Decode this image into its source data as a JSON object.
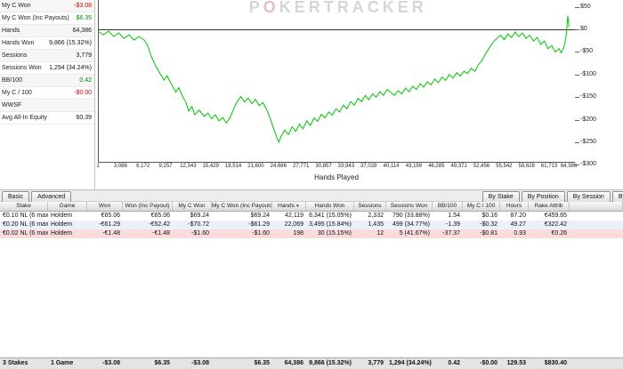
{
  "stats_panel": {
    "rows": [
      {
        "label": "My C Won",
        "value": "-$3.08",
        "color": "neg"
      },
      {
        "label": "My C Won (Inc Payouts)",
        "value": "$6.35",
        "color": "pos"
      },
      {
        "label": "Hands",
        "value": "64,386",
        "color": ""
      },
      {
        "label": "Hands Won",
        "value": "9,866 (15.32%)",
        "color": ""
      },
      {
        "label": "Sessions",
        "value": "3,779",
        "color": ""
      },
      {
        "label": "Sessions Won",
        "value": "1,294 (34.24%)",
        "color": ""
      },
      {
        "label": "BB/100",
        "value": "0.42",
        "color": "pos"
      },
      {
        "label": "My C / 100",
        "value": "-$0.00",
        "color": "neg"
      },
      {
        "label": "WWSF",
        "value": "",
        "color": ""
      },
      {
        "label": "Avg All-In Equity",
        "value": "60.39",
        "color": ""
      }
    ]
  },
  "chart": {
    "watermark": "POKERTRACKER",
    "xlabel": "Hands Played",
    "y_ticks": [
      {
        "label": "$50",
        "value": 50
      },
      {
        "label": "$0",
        "value": 0
      },
      {
        "label": "-$50",
        "value": -50
      },
      {
        "label": "-$100",
        "value": -100
      },
      {
        "label": "-$150",
        "value": -150
      },
      {
        "label": "-$200",
        "value": -200
      },
      {
        "label": "-$250",
        "value": -250
      },
      {
        "label": "-$300",
        "value": -300
      }
    ],
    "x_ticks": [
      {
        "label": "1",
        "value": 1
      },
      {
        "label": "3,086",
        "value": 3086
      },
      {
        "label": "6,172",
        "value": 6172
      },
      {
        "label": "9,257",
        "value": 9257
      },
      {
        "label": "12,343",
        "value": 12343
      },
      {
        "label": "15,429",
        "value": 15429
      },
      {
        "label": "18,514",
        "value": 18514
      },
      {
        "label": "21,600",
        "value": 21600
      },
      {
        "label": "24,686",
        "value": 24686
      },
      {
        "label": "27,771",
        "value": 27771
      },
      {
        "label": "30,857",
        "value": 30857
      },
      {
        "label": "33,943",
        "value": 33943
      },
      {
        "label": "37,028",
        "value": 37028
      },
      {
        "label": "40,114",
        "value": 40114
      },
      {
        "label": "43,199",
        "value": 43199
      },
      {
        "label": "46,285",
        "value": 46285
      },
      {
        "label": "49,371",
        "value": 49371
      },
      {
        "label": "52,456",
        "value": 52456
      },
      {
        "label": "55,542",
        "value": 55542
      },
      {
        "label": "58,628",
        "value": 58628
      },
      {
        "label": "61,713",
        "value": 61713
      },
      {
        "label": "64,386",
        "value": 64386
      }
    ]
  },
  "chart_data": {
    "type": "line",
    "title": "",
    "xlabel": "Hands Played",
    "ylabel": "",
    "xlim": [
      1,
      64386
    ],
    "ylim": [
      -310,
      55
    ],
    "grid": false,
    "line_color": "#00c400",
    "series": [
      {
        "name": "My C Won",
        "points": [
          [
            1,
            -5
          ],
          [
            700,
            -12
          ],
          [
            1400,
            -4
          ],
          [
            2100,
            -16
          ],
          [
            2800,
            -8
          ],
          [
            3500,
            -20
          ],
          [
            4200,
            -12
          ],
          [
            4900,
            -24
          ],
          [
            5500,
            -16
          ],
          [
            6200,
            -22
          ],
          [
            6700,
            -34
          ],
          [
            7200,
            -58
          ],
          [
            7800,
            -80
          ],
          [
            8400,
            -97
          ],
          [
            9000,
            -112
          ],
          [
            9400,
            -103
          ],
          [
            10000,
            -122
          ],
          [
            10600,
            -139
          ],
          [
            11000,
            -129
          ],
          [
            11600,
            -151
          ],
          [
            12000,
            -162
          ],
          [
            12343,
            -181
          ],
          [
            12800,
            -171
          ],
          [
            13200,
            -189
          ],
          [
            13800,
            -179
          ],
          [
            14500,
            -193
          ],
          [
            15000,
            -185
          ],
          [
            15500,
            -198
          ],
          [
            16000,
            -189
          ],
          [
            16500,
            -203
          ],
          [
            17000,
            -195
          ],
          [
            17500,
            -207
          ],
          [
            18000,
            -196
          ],
          [
            18500,
            -176
          ],
          [
            19000,
            -159
          ],
          [
            19500,
            -149
          ],
          [
            20000,
            -161
          ],
          [
            20500,
            -152
          ],
          [
            21000,
            -165
          ],
          [
            21500,
            -155
          ],
          [
            22000,
            -169
          ],
          [
            22500,
            -162
          ],
          [
            23000,
            -177
          ],
          [
            23500,
            -197
          ],
          [
            24000,
            -221
          ],
          [
            24350,
            -237
          ],
          [
            24686,
            -250
          ],
          [
            25000,
            -236
          ],
          [
            25500,
            -223
          ],
          [
            26000,
            -233
          ],
          [
            26500,
            -216
          ],
          [
            27000,
            -226
          ],
          [
            27500,
            -210
          ],
          [
            28000,
            -220
          ],
          [
            28500,
            -203
          ],
          [
            29000,
            -213
          ],
          [
            29500,
            -196
          ],
          [
            30000,
            -204
          ],
          [
            30500,
            -188
          ],
          [
            31000,
            -196
          ],
          [
            31500,
            -183
          ],
          [
            32000,
            -190
          ],
          [
            32500,
            -176
          ],
          [
            33000,
            -183
          ],
          [
            33500,
            -168
          ],
          [
            34000,
            -176
          ],
          [
            34500,
            -160
          ],
          [
            35000,
            -168
          ],
          [
            35500,
            -153
          ],
          [
            36000,
            -160
          ],
          [
            36500,
            -146
          ],
          [
            37000,
            -156
          ],
          [
            37500,
            -143
          ],
          [
            38000,
            -150
          ],
          [
            38500,
            -138
          ],
          [
            39000,
            -146
          ],
          [
            39500,
            -133
          ],
          [
            40000,
            -140
          ],
          [
            40500,
            -146
          ],
          [
            41000,
            -136
          ],
          [
            41500,
            -143
          ],
          [
            42000,
            -130
          ],
          [
            42500,
            -138
          ],
          [
            43000,
            -126
          ],
          [
            43500,
            -133
          ],
          [
            44000,
            -120
          ],
          [
            44500,
            -128
          ],
          [
            45000,
            -116
          ],
          [
            45500,
            -123
          ],
          [
            46000,
            -110
          ],
          [
            46500,
            -118
          ],
          [
            47000,
            -106
          ],
          [
            47500,
            -113
          ],
          [
            48000,
            -100
          ],
          [
            48500,
            -108
          ],
          [
            49000,
            -96
          ],
          [
            49500,
            -103
          ],
          [
            50000,
            -93
          ],
          [
            50500,
            -98
          ],
          [
            51000,
            -86
          ],
          [
            51500,
            -93
          ],
          [
            52000,
            -78
          ],
          [
            52500,
            -68
          ],
          [
            53000,
            -53
          ],
          [
            53500,
            -40
          ],
          [
            54000,
            -28
          ],
          [
            54500,
            -20
          ],
          [
            55000,
            -13
          ],
          [
            55500,
            -23
          ],
          [
            56000,
            -10
          ],
          [
            56500,
            -18
          ],
          [
            57000,
            -6
          ],
          [
            57500,
            -16
          ],
          [
            58000,
            -8
          ],
          [
            58500,
            -20
          ],
          [
            59000,
            -13
          ],
          [
            59500,
            -26
          ],
          [
            60000,
            -18
          ],
          [
            60500,
            -33
          ],
          [
            61000,
            -26
          ],
          [
            61500,
            -43
          ],
          [
            62000,
            -36
          ],
          [
            62500,
            -50
          ],
          [
            63000,
            -43
          ],
          [
            63300,
            -52
          ],
          [
            63700,
            -38
          ],
          [
            64000,
            -12
          ],
          [
            64200,
            30
          ],
          [
            64386,
            6
          ]
        ]
      }
    ]
  },
  "toolbar": {
    "left_buttons": [
      "Basic",
      "Advanced"
    ],
    "right_buttons": [
      "By Stake",
      "By Position",
      "By Session",
      "By Site"
    ]
  },
  "table": {
    "columns": [
      {
        "label": "Stake"
      },
      {
        "label": "Game"
      },
      {
        "label": "Won"
      },
      {
        "label": "Won (Inc Payout)"
      },
      {
        "label": "My C Won"
      },
      {
        "label": "My C Won (Inc Payouts)"
      },
      {
        "label": "Hands",
        "sort": "desc"
      },
      {
        "label": "Hands Won"
      },
      {
        "label": "Sessions"
      },
      {
        "label": "Sessions Won"
      },
      {
        "label": "BB/100"
      },
      {
        "label": "My C / 100"
      },
      {
        "label": "Hours"
      },
      {
        "label": "Rake Attrib"
      }
    ],
    "rows": [
      {
        "bg": "#ffffff",
        "cells": [
          "€0.10 NL (6 max)",
          "Holdem",
          "€65.06",
          "€65.06",
          "$69.24",
          "$69.24",
          "42,119",
          "6,341 (15.05%)",
          "2,332",
          "790 (33.88%)",
          "1.54",
          "$0.16",
          "87.20",
          "€459.65"
        ],
        "colors": [
          "",
          "",
          "pos",
          "pos",
          "pos",
          "pos",
          "",
          "",
          "",
          "",
          "pos",
          "pos",
          "",
          ""
        ]
      },
      {
        "bg": "#eaf1fb",
        "cells": [
          "€0.20 NL (6 max)",
          "Holdem",
          "-€61.29",
          "-€52.42",
          "-$70.72",
          "-$61.29",
          "22,069",
          "3,495 (15.84%)",
          "1,435",
          "499 (34.77%)",
          "-1.39",
          "-$0.32",
          "49.27",
          "€322.42"
        ],
        "colors": [
          "",
          "",
          "neg",
          "neg",
          "neg",
          "neg",
          "",
          "",
          "",
          "",
          "neg",
          "neg",
          "",
          ""
        ]
      },
      {
        "bg": "#fadcdc",
        "cells": [
          "€0.02 NL (6 max)",
          "Holdem",
          "-€1.48",
          "-€1.48",
          "-$1.60",
          "-$1.60",
          "198",
          "30 (15.15%)",
          "12",
          "5 (41.67%)",
          "-37.37",
          "-$0.81",
          "0.93",
          "€0.26"
        ],
        "colors": [
          "",
          "",
          "neg",
          "neg",
          "neg",
          "neg",
          "",
          "",
          "",
          "",
          "neg",
          "neg",
          "",
          ""
        ]
      }
    ],
    "totals": {
      "cells": [
        "3 Stakes",
        "1 Game",
        "-$3.08",
        "$6.35",
        "-$3.08",
        "$6.35",
        "64,386",
        "9,866 (15.32%)",
        "3,779",
        "1,294 (34.24%)",
        "0.42",
        "-$0.00",
        "129.53",
        "$830.40"
      ],
      "colors": [
        "",
        "",
        "neg",
        "pos",
        "neg",
        "pos",
        "",
        "",
        "",
        "",
        "pos",
        "neg",
        "",
        ""
      ]
    }
  }
}
